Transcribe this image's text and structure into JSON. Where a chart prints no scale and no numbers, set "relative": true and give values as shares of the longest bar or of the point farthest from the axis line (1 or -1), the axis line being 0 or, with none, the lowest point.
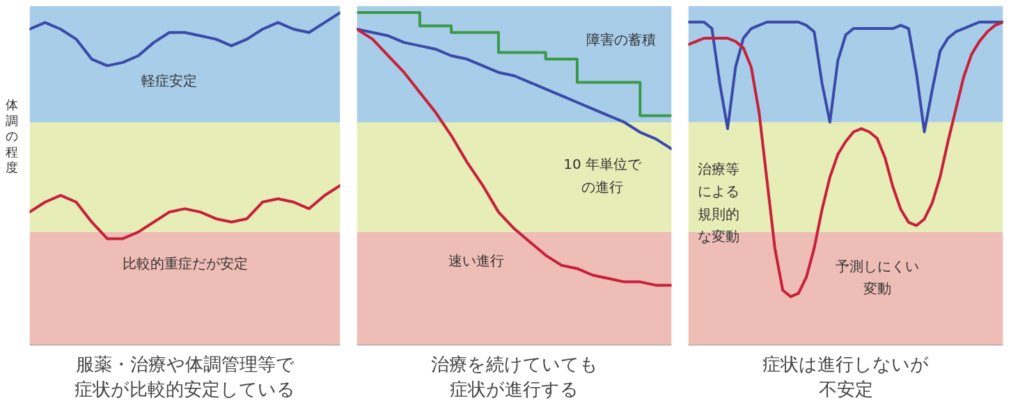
{
  "chart_data": [
    {
      "type": "line",
      "relative": true,
      "ylabel": "体調の程度",
      "xlabel": "服薬・治療や体調管理等で症状が比較的安定している",
      "categories": [
        null,
        null,
        null,
        null,
        null,
        null,
        null,
        null,
        null,
        null,
        null,
        null,
        null,
        null,
        null,
        null,
        null,
        null,
        null,
        null,
        null
      ],
      "series": [
        {
          "color": "#3a4aa8",
          "values": [
            0.95,
            0.97,
            0.95,
            0.92,
            0.86,
            0.84,
            0.85,
            0.87,
            0.91,
            0.94,
            0.94,
            0.93,
            0.92,
            0.9,
            0.92,
            0.95,
            0.97,
            0.95,
            0.94,
            0.97,
            1.0
          ]
        },
        {
          "color": "#c8203a",
          "values": [
            0.4,
            0.43,
            0.45,
            0.43,
            0.37,
            0.32,
            0.32,
            0.34,
            0.37,
            0.4,
            0.41,
            0.4,
            0.38,
            0.37,
            0.38,
            0.43,
            0.44,
            0.43,
            0.41,
            0.45,
            0.48
          ]
        }
      ],
      "bands": [
        {
          "axis": "y",
          "from": 0,
          "to": 0.34,
          "color": "#eebdb6"
        },
        {
          "axis": "y",
          "from": 0.34,
          "to": 0.67,
          "color": "#e6edb6"
        },
        {
          "axis": "y",
          "from": 0.67,
          "to": 1.02,
          "color": "#a8cde8"
        }
      ],
      "annotations": [
        "軽症安定",
        "比較的重症だが安定"
      ]
    },
    {
      "type": "line",
      "relative": true,
      "xlabel": "治療を続けていても症状が進行する",
      "categories": [
        null,
        null,
        null,
        null,
        null,
        null,
        null,
        null,
        null,
        null,
        null,
        null,
        null,
        null,
        null,
        null,
        null,
        null,
        null,
        null,
        null
      ],
      "series": [
        {
          "type": "step",
          "color": "#3a9a48",
          "values": [
            1.0,
            1.0,
            1.0,
            1.0,
            0.96,
            0.96,
            0.94,
            0.94,
            0.94,
            0.88,
            0.88,
            0.88,
            0.86,
            0.86,
            0.79,
            0.79,
            0.79,
            0.79,
            0.69,
            0.69,
            0.69
          ]
        },
        {
          "color": "#3a4aa8",
          "values": [
            0.95,
            0.94,
            0.93,
            0.91,
            0.9,
            0.89,
            0.87,
            0.86,
            0.84,
            0.82,
            0.81,
            0.79,
            0.77,
            0.75,
            0.73,
            0.71,
            0.69,
            0.67,
            0.64,
            0.62,
            0.59
          ]
        },
        {
          "color": "#c8203a",
          "values": [
            0.95,
            0.92,
            0.87,
            0.82,
            0.76,
            0.7,
            0.63,
            0.55,
            0.48,
            0.4,
            0.35,
            0.31,
            0.27,
            0.24,
            0.23,
            0.21,
            0.2,
            0.19,
            0.19,
            0.18,
            0.18
          ]
        }
      ],
      "bands": [
        {
          "axis": "y",
          "from": 0,
          "to": 0.34,
          "color": "#eebdb6"
        },
        {
          "axis": "y",
          "from": 0.34,
          "to": 0.67,
          "color": "#e6edb6"
        },
        {
          "axis": "y",
          "from": 0.67,
          "to": 1.02,
          "color": "#a8cde8"
        }
      ],
      "annotations": [
        "障害の蓄積",
        "10 年単位での進行",
        "速い進行"
      ]
    },
    {
      "type": "line",
      "relative": true,
      "xlabel": "症状は進行しないが不安定",
      "categories": [
        null,
        null,
        null,
        null,
        null,
        null,
        null,
        null,
        null,
        null,
        null,
        null,
        null,
        null,
        null,
        null,
        null,
        null,
        null,
        null,
        null,
        null,
        null,
        null,
        null,
        null,
        null,
        null,
        null,
        null,
        null,
        null,
        null,
        null,
        null,
        null,
        null,
        null,
        null,
        null,
        null
      ],
      "series": [
        {
          "color": "#3a4aa8",
          "values": [
            1.0,
            1.0,
            1.0,
            0.98,
            0.81,
            0.67,
            0.86,
            0.95,
            0.98,
            0.99,
            1.0,
            1.0,
            1.0,
            1.0,
            1.0,
            0.99,
            0.97,
            0.81,
            0.69,
            0.88,
            0.96,
            0.98,
            0.98,
            0.98,
            0.98,
            0.98,
            0.98,
            0.99,
            0.98,
            0.84,
            0.66,
            0.79,
            0.91,
            0.95,
            0.97,
            0.98,
            0.99,
            1.0,
            1.0,
            1.0,
            1.0
          ]
        },
        {
          "color": "#c8203a",
          "values": [
            0.93,
            0.94,
            0.95,
            0.95,
            0.95,
            0.95,
            0.94,
            0.92,
            0.86,
            0.72,
            0.51,
            0.3,
            0.17,
            0.15,
            0.16,
            0.21,
            0.3,
            0.42,
            0.52,
            0.59,
            0.63,
            0.66,
            0.67,
            0.66,
            0.64,
            0.58,
            0.49,
            0.42,
            0.38,
            0.37,
            0.39,
            0.44,
            0.52,
            0.63,
            0.73,
            0.83,
            0.9,
            0.94,
            0.97,
            0.99,
            1.0
          ]
        }
      ],
      "bands": [
        {
          "axis": "y",
          "from": 0,
          "to": 0.35,
          "color": "#eebdb6"
        },
        {
          "axis": "y",
          "from": 0.35,
          "to": 0.69,
          "color": "#e6edb6"
        },
        {
          "axis": "y",
          "from": 0.69,
          "to": 1.05,
          "color": "#a8cde8"
        }
      ],
      "annotations": [
        "治療等による規則的な変動",
        "予測しにくい変動"
      ]
    }
  ]
}
